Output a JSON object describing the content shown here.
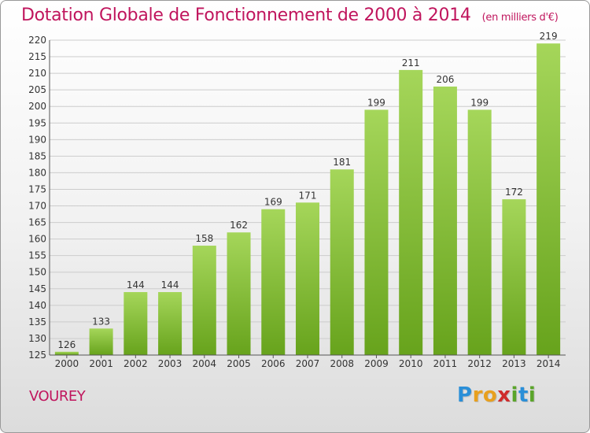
{
  "title": "Dotation Globale de Fonctionnement de 2000 à 2014",
  "unit": "(en milliers d'€)",
  "commune": "VOUREY",
  "logo": {
    "letters": [
      "P",
      "r",
      "o",
      "x",
      "i",
      "t",
      "i"
    ],
    "colors": [
      "#2a8fd8",
      "#e8a01e",
      "#e8a01e",
      "#cf2c2c",
      "#5aa52a",
      "#2a8fd8",
      "#5aa52a"
    ]
  },
  "colors": {
    "title": "#c0155d",
    "bar_light": "#a5d65a",
    "bar_dark": "#67a31c",
    "grid": "#cccccc"
  },
  "chart_data": {
    "type": "bar",
    "title": "Dotation Globale de Fonctionnement de 2000 à 2014",
    "xlabel": "",
    "ylabel": "",
    "ylim": [
      125,
      220
    ],
    "yticks": [
      125,
      130,
      135,
      140,
      145,
      150,
      155,
      160,
      165,
      170,
      175,
      180,
      185,
      190,
      195,
      200,
      205,
      210,
      215,
      220
    ],
    "grid": true,
    "categories": [
      "2000",
      "2001",
      "2002",
      "2003",
      "2004",
      "2005",
      "2006",
      "2007",
      "2008",
      "2009",
      "2010",
      "2011",
      "2012",
      "2013",
      "2014"
    ],
    "values": [
      126,
      133,
      144,
      144,
      158,
      162,
      169,
      171,
      181,
      199,
      211,
      206,
      199,
      172,
      219
    ]
  }
}
